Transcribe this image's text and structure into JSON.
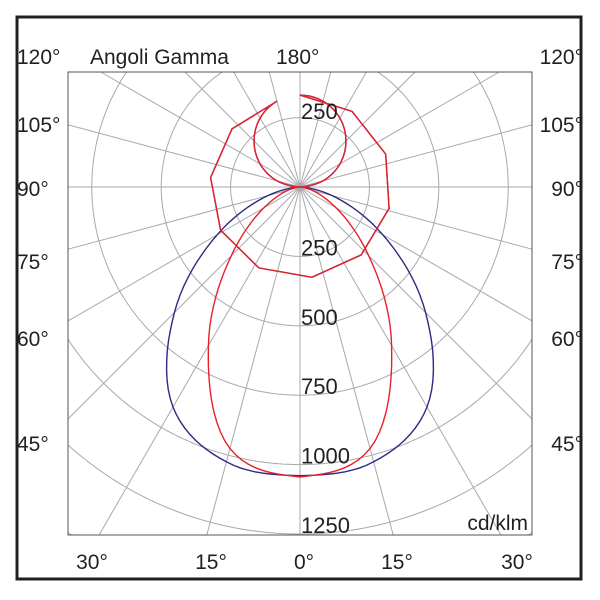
{
  "chart_data": {
    "type": "polar",
    "title": "Angoli Gamma",
    "unit": "cd/klm",
    "top_angle_label": "180°",
    "radial_ticks": [
      250,
      500,
      750,
      1000,
      1250
    ],
    "upper_radial_label": "250",
    "radial_max_ring": 1750,
    "angle_grid_step": 15,
    "side_labels": [
      "120°",
      "105°",
      "90°",
      "75°",
      "60°",
      "45°"
    ],
    "side_label_angles": [
      120,
      105,
      90,
      75,
      60,
      45
    ],
    "bottom_labels": [
      "30°",
      "15°",
      "0°",
      "15°",
      "30°"
    ],
    "bottom_label_angles": [
      -30,
      -15,
      0,
      15,
      30
    ],
    "grid": true,
    "gamma": [
      0,
      15,
      30,
      45,
      60,
      75,
      90,
      105,
      120,
      135,
      150,
      165,
      180
    ],
    "series": [
      {
        "color": "#2b2a83",
        "values": [
          1040,
          1025,
          915,
          640,
          345,
          120,
          0,
          86,
          166,
          234,
          287,
          320,
          331
        ]
      },
      {
        "color": "#e8202a",
        "values": [
          1045,
          975,
          660,
          350,
          150,
          45,
          0,
          86,
          166,
          234,
          287,
          320,
          331
        ]
      }
    ]
  }
}
